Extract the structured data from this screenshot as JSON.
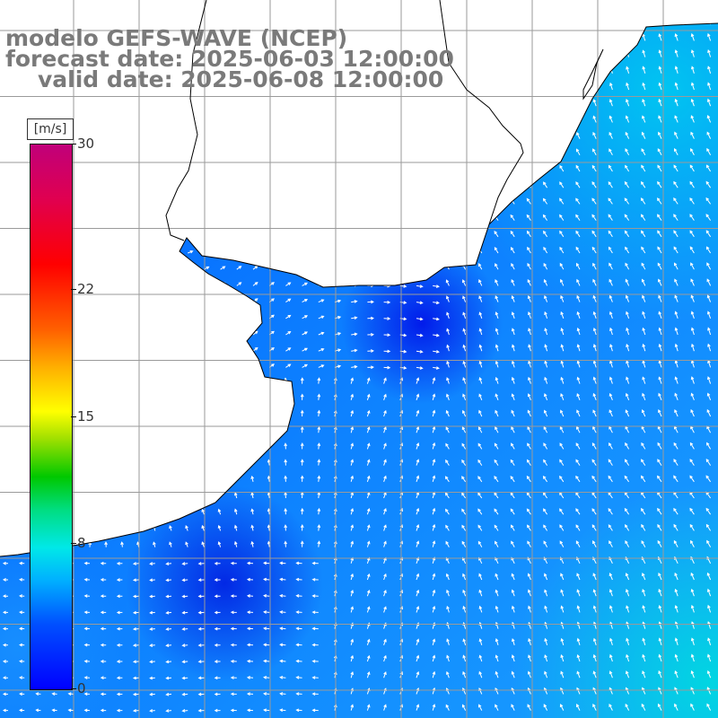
{
  "header": {
    "line1": "modelo GEFS-WAVE (NCEP)",
    "line2": "forecast date: 2025-06-03 12:00:00",
    "line3": "valid date: 2025-06-08 12:00:00"
  },
  "colorbar": {
    "unit": "[m/s]",
    "ticks": [
      {
        "label": "30",
        "value": 30
      },
      {
        "label": "22",
        "value": 22
      },
      {
        "label": "15",
        "value": 15
      },
      {
        "label": "8",
        "value": 8
      },
      {
        "label": "0",
        "value": 0
      }
    ],
    "min": 0,
    "max": 30
  },
  "colors": {
    "low": "#0000ff",
    "mid": "#0070ff",
    "high": "#00c8f0",
    "land": "#ffffff",
    "coast": "#000000",
    "grid": "#9a9a9a",
    "arrow": "#ffffff",
    "title": "#7a7a7a"
  }
}
